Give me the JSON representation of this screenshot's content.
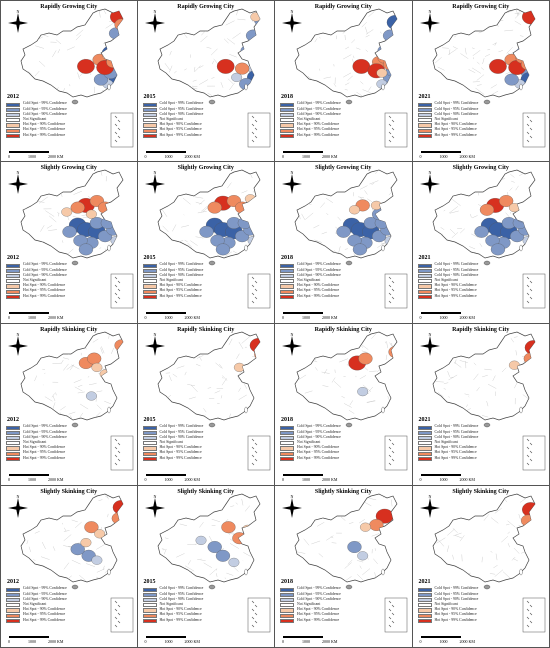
{
  "figure": {
    "panels": [
      {
        "title": "Rapidly Growing City",
        "year": "2012",
        "hot": [
          [
            0.86,
            0.09,
            3
          ],
          [
            0.88,
            0.16,
            2
          ],
          [
            0.62,
            0.54,
            3
          ],
          [
            0.72,
            0.48,
            2
          ],
          [
            0.76,
            0.55,
            3
          ],
          [
            0.82,
            0.5,
            2
          ],
          [
            0.78,
            0.44,
            1
          ]
        ],
        "cold": [
          [
            0.84,
            0.24,
            2
          ],
          [
            0.8,
            0.42,
            3
          ],
          [
            0.84,
            0.56,
            2
          ],
          [
            0.85,
            0.64,
            3
          ],
          [
            0.78,
            0.7,
            1
          ],
          [
            0.73,
            0.66,
            2
          ],
          [
            0.8,
            0.6,
            2
          ]
        ]
      },
      {
        "title": "Rapidly Growing City",
        "year": "2015",
        "hot": [
          [
            0.86,
            0.09,
            1
          ],
          [
            0.64,
            0.54,
            3
          ],
          [
            0.76,
            0.56,
            2
          ]
        ],
        "cold": [
          [
            0.9,
            0.12,
            2
          ],
          [
            0.84,
            0.26,
            2
          ],
          [
            0.8,
            0.4,
            2
          ],
          [
            0.84,
            0.56,
            1
          ],
          [
            0.86,
            0.64,
            3
          ],
          [
            0.79,
            0.7,
            2
          ],
          [
            0.72,
            0.64,
            1
          ]
        ]
      },
      {
        "title": "Rapidly Growing City",
        "year": "2018",
        "hot": [
          [
            0.63,
            0.54,
            3
          ],
          [
            0.76,
            0.5,
            2
          ],
          [
            0.74,
            0.58,
            3
          ],
          [
            0.8,
            0.46,
            2
          ],
          [
            0.84,
            0.52,
            2
          ],
          [
            0.78,
            0.6,
            1
          ]
        ],
        "cold": [
          [
            0.88,
            0.14,
            3
          ],
          [
            0.84,
            0.26,
            2
          ],
          [
            0.8,
            0.4,
            2
          ],
          [
            0.84,
            0.64,
            2
          ],
          [
            0.78,
            0.7,
            1
          ],
          [
            0.86,
            0.58,
            2
          ]
        ]
      },
      {
        "title": "Rapidly Growing City",
        "year": "2021",
        "hot": [
          [
            0.86,
            0.09,
            3
          ],
          [
            0.62,
            0.54,
            3
          ],
          [
            0.72,
            0.48,
            2
          ],
          [
            0.76,
            0.55,
            3
          ],
          [
            0.8,
            0.46,
            2
          ],
          [
            0.84,
            0.52,
            2
          ]
        ],
        "cold": [
          [
            0.8,
            0.42,
            2
          ],
          [
            0.84,
            0.6,
            2
          ],
          [
            0.85,
            0.66,
            3
          ],
          [
            0.78,
            0.7,
            1
          ],
          [
            0.72,
            0.66,
            2
          ]
        ]
      },
      {
        "title": "Slightly Growing City",
        "year": "2012",
        "hot": [
          [
            0.62,
            0.34,
            3
          ],
          [
            0.7,
            0.3,
            2
          ],
          [
            0.56,
            0.36,
            2
          ],
          [
            0.48,
            0.4,
            1
          ],
          [
            0.76,
            0.36,
            2
          ],
          [
            0.66,
            0.42,
            1
          ]
        ],
        "cold": [
          [
            0.56,
            0.52,
            3
          ],
          [
            0.62,
            0.56,
            3
          ],
          [
            0.7,
            0.58,
            3
          ],
          [
            0.76,
            0.62,
            2
          ],
          [
            0.82,
            0.56,
            2
          ],
          [
            0.66,
            0.68,
            2
          ],
          [
            0.58,
            0.66,
            2
          ],
          [
            0.7,
            0.5,
            2
          ],
          [
            0.78,
            0.5,
            2
          ],
          [
            0.62,
            0.74,
            2
          ],
          [
            0.5,
            0.58,
            2
          ],
          [
            0.84,
            0.66,
            1
          ]
        ]
      },
      {
        "title": "Slightly Growing City",
        "year": "2015",
        "hot": [
          [
            0.62,
            0.32,
            3
          ],
          [
            0.7,
            0.3,
            2
          ],
          [
            0.76,
            0.36,
            2
          ],
          [
            0.56,
            0.36,
            2
          ],
          [
            0.82,
            0.28,
            1
          ]
        ],
        "cold": [
          [
            0.56,
            0.52,
            3
          ],
          [
            0.62,
            0.56,
            3
          ],
          [
            0.7,
            0.58,
            3
          ],
          [
            0.76,
            0.62,
            2
          ],
          [
            0.82,
            0.56,
            2
          ],
          [
            0.66,
            0.68,
            2
          ],
          [
            0.58,
            0.66,
            2
          ],
          [
            0.7,
            0.5,
            2
          ],
          [
            0.78,
            0.5,
            2
          ],
          [
            0.62,
            0.74,
            2
          ],
          [
            0.5,
            0.58,
            2
          ],
          [
            0.86,
            0.4,
            2
          ],
          [
            0.84,
            0.66,
            1
          ]
        ]
      },
      {
        "title": "Slightly Growing City",
        "year": "2018",
        "hot": [
          [
            0.64,
            0.34,
            2
          ],
          [
            0.58,
            0.38,
            1
          ],
          [
            0.74,
            0.34,
            1
          ]
        ],
        "cold": [
          [
            0.56,
            0.52,
            3
          ],
          [
            0.62,
            0.56,
            3
          ],
          [
            0.7,
            0.58,
            3
          ],
          [
            0.76,
            0.62,
            2
          ],
          [
            0.82,
            0.56,
            2
          ],
          [
            0.66,
            0.68,
            2
          ],
          [
            0.58,
            0.66,
            2
          ],
          [
            0.7,
            0.5,
            2
          ],
          [
            0.78,
            0.5,
            2
          ],
          [
            0.62,
            0.74,
            2
          ],
          [
            0.5,
            0.58,
            2
          ],
          [
            0.84,
            0.66,
            1
          ],
          [
            0.76,
            0.42,
            2
          ]
        ]
      },
      {
        "title": "Slightly Growing City",
        "year": "2021",
        "hot": [
          [
            0.6,
            0.34,
            3
          ],
          [
            0.68,
            0.3,
            2
          ],
          [
            0.54,
            0.38,
            2
          ],
          [
            0.74,
            0.36,
            1
          ]
        ],
        "cold": [
          [
            0.56,
            0.52,
            3
          ],
          [
            0.62,
            0.56,
            3
          ],
          [
            0.7,
            0.58,
            3
          ],
          [
            0.76,
            0.62,
            2
          ],
          [
            0.82,
            0.56,
            2
          ],
          [
            0.66,
            0.68,
            2
          ],
          [
            0.58,
            0.66,
            2
          ],
          [
            0.7,
            0.5,
            2
          ],
          [
            0.78,
            0.5,
            2
          ],
          [
            0.62,
            0.74,
            2
          ],
          [
            0.5,
            0.58,
            2
          ],
          [
            0.84,
            0.66,
            1
          ],
          [
            0.86,
            0.38,
            2
          ],
          [
            0.8,
            0.44,
            2
          ]
        ]
      },
      {
        "title": "Rapidly Skinking City",
        "year": "2012",
        "hot": [
          [
            0.62,
            0.3,
            2
          ],
          [
            0.68,
            0.26,
            2
          ],
          [
            0.7,
            0.34,
            1
          ],
          [
            0.88,
            0.14,
            2
          ],
          [
            0.76,
            0.4,
            1
          ]
        ],
        "cold": [
          [
            0.66,
            0.6,
            1
          ]
        ]
      },
      {
        "title": "Rapidly Skinking City",
        "year": "2015",
        "hot": [
          [
            0.88,
            0.14,
            3
          ],
          [
            0.9,
            0.22,
            2
          ],
          [
            0.74,
            0.34,
            1
          ]
        ],
        "cold": []
      },
      {
        "title": "Rapidly Skinking City",
        "year": "2018",
        "hot": [
          [
            0.6,
            0.3,
            3
          ],
          [
            0.66,
            0.26,
            2
          ],
          [
            0.88,
            0.2,
            2
          ],
          [
            0.84,
            0.34,
            1
          ]
        ],
        "cold": [
          [
            0.64,
            0.56,
            1
          ]
        ]
      },
      {
        "title": "Rapidly Skinking City",
        "year": "2021",
        "hot": [
          [
            0.88,
            0.16,
            3
          ],
          [
            0.86,
            0.26,
            2
          ],
          [
            0.84,
            0.36,
            1
          ],
          [
            0.74,
            0.32,
            1
          ]
        ],
        "cold": []
      },
      {
        "title": "Slightly Skinking City",
        "year": "2012",
        "hot": [
          [
            0.88,
            0.14,
            3
          ],
          [
            0.86,
            0.24,
            2
          ],
          [
            0.66,
            0.32,
            2
          ],
          [
            0.72,
            0.38,
            1
          ],
          [
            0.62,
            0.46,
            1
          ]
        ],
        "cold": [
          [
            0.64,
            0.58,
            2
          ],
          [
            0.56,
            0.52,
            2
          ],
          [
            0.7,
            0.62,
            1
          ]
        ]
      },
      {
        "title": "Slightly Skinking City",
        "year": "2015",
        "hot": [
          [
            0.66,
            0.32,
            2
          ],
          [
            0.74,
            0.42,
            2
          ],
          [
            0.8,
            0.34,
            1
          ]
        ],
        "cold": [
          [
            0.56,
            0.5,
            2
          ],
          [
            0.62,
            0.58,
            2
          ],
          [
            0.7,
            0.64,
            1
          ],
          [
            0.46,
            0.44,
            1
          ]
        ]
      },
      {
        "title": "Slightly Skinking City",
        "year": "2018",
        "hot": [
          [
            0.8,
            0.22,
            3
          ],
          [
            0.74,
            0.3,
            2
          ],
          [
            0.66,
            0.32,
            1
          ]
        ],
        "cold": [
          [
            0.58,
            0.5,
            2
          ],
          [
            0.64,
            0.58,
            1
          ]
        ]
      },
      {
        "title": "Slightly Skinking City",
        "year": "2021",
        "hot": [
          [
            0.86,
            0.16,
            3
          ],
          [
            0.84,
            0.26,
            2
          ]
        ],
        "cold": []
      }
    ]
  },
  "legend": {
    "items": [
      {
        "label": "Cold Spot - 99% Confidence",
        "color": "#3b62a6"
      },
      {
        "label": "Cold Spot - 95% Confidence",
        "color": "#7f98c6"
      },
      {
        "label": "Cold Spot - 90% Confidence",
        "color": "#c2cde2"
      },
      {
        "label": "Not Significant",
        "color": "#ffffff"
      },
      {
        "label": "Hot Spot - 90% Confidence",
        "color": "#f6c9a8"
      },
      {
        "label": "Hot Spot - 95% Confidence",
        "color": "#ef8a5f"
      },
      {
        "label": "Hot Spot - 99% Confidence",
        "color": "#d7301f"
      }
    ]
  },
  "scale": {
    "labels": [
      "0",
      "1000",
      "2000 KM"
    ]
  },
  "compass": {
    "north_label": "N"
  },
  "colors": {
    "border": "#444444",
    "province": "#bbbbbb",
    "nine_dash": "#555555"
  }
}
